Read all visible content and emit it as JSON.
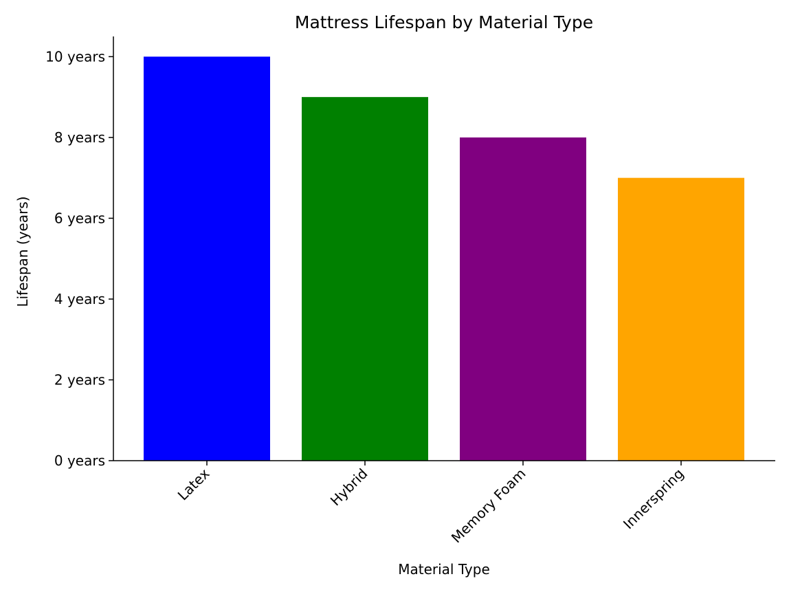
{
  "chart_data": {
    "type": "bar",
    "title": "Mattress Lifespan by Material Type",
    "xlabel": "Material Type",
    "ylabel": "Lifespan (years)",
    "categories": [
      "Latex",
      "Hybrid",
      "Memory Foam",
      "Innerspring"
    ],
    "values": [
      10,
      9,
      8,
      7
    ],
    "colors": [
      "#0000ff",
      "#008000",
      "#800080",
      "#ffa500"
    ],
    "ylim": [
      0,
      10.5
    ],
    "yticks": [
      0,
      2,
      4,
      6,
      8,
      10
    ],
    "ytick_labels": [
      "0 years",
      "2 years",
      "4 years",
      "6 years",
      "8 years",
      "10 years"
    ],
    "grid": false,
    "legend": "none"
  }
}
